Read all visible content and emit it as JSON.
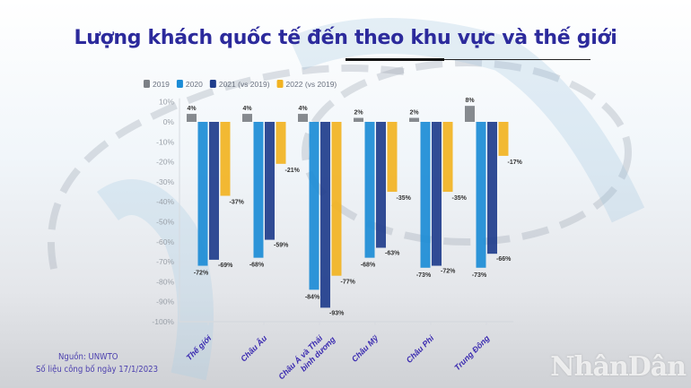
{
  "title": "Lượng khách quốc tế đến theo khu vực và thế giới",
  "source": {
    "line1": "Nguồn: UNWTO",
    "line2": "Số liệu công bố ngày 17/1/2023"
  },
  "watermark": "NhânDân",
  "chart_data": {
    "type": "bar",
    "title": "Lượng khách quốc tế đến theo khu vực và thế giới",
    "categories": [
      [
        "Thế giới"
      ],
      [
        "Châu Âu"
      ],
      [
        "Châu Á và Thái",
        "bình dương"
      ],
      [
        "Châu Mỹ"
      ],
      [
        "Châu Phi"
      ],
      [
        "Trung Đông"
      ]
    ],
    "series": [
      {
        "name": "2019",
        "color": "#7c8086",
        "values": [
          4,
          4,
          4,
          2,
          2,
          8
        ]
      },
      {
        "name": "2020",
        "color": "#1c8cd6",
        "values": [
          -72,
          -68,
          -84,
          -68,
          -73,
          -73
        ]
      },
      {
        "name": "2021 (vs 2019)",
        "color": "#1f3d8c",
        "values": [
          -69,
          -59,
          -93,
          -63,
          -72,
          -66
        ]
      },
      {
        "name": "2022 (vs 2019)",
        "color": "#f2b322",
        "values": [
          -37,
          -21,
          -77,
          -35,
          -35,
          -17
        ]
      }
    ],
    "yticks": [
      "10%",
      "0%",
      "-10%",
      "-20%",
      "-30%",
      "-40%",
      "-50%",
      "-60%",
      "-70%",
      "-80%",
      "-90%",
      "-100%"
    ],
    "ylim": [
      -100,
      10
    ],
    "legend": "top-left",
    "grid": false
  }
}
